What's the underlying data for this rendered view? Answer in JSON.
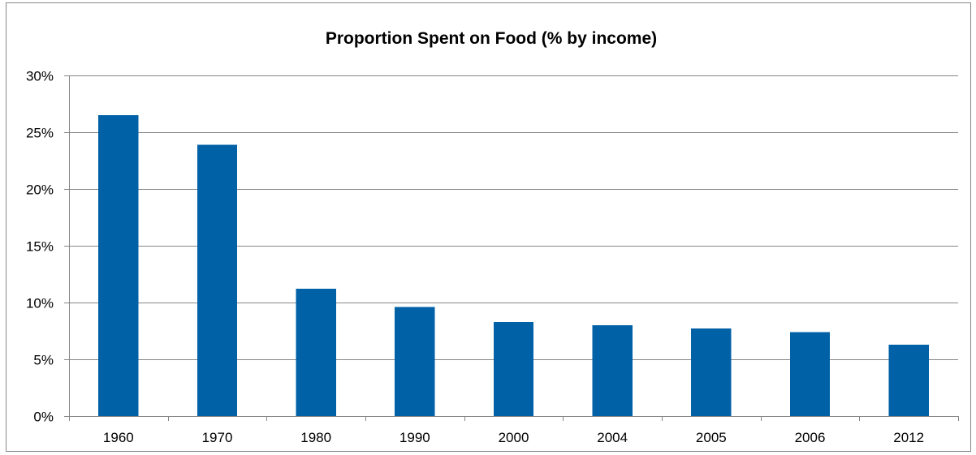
{
  "chart_data": {
    "type": "bar",
    "title": "Proportion Spent on Food (% by income)",
    "xlabel": "",
    "ylabel": "",
    "categories": [
      "1960",
      "1970",
      "1980",
      "1990",
      "2000",
      "2004",
      "2005",
      "2006",
      "2012"
    ],
    "values": [
      26.5,
      23.9,
      11.2,
      9.6,
      8.3,
      8.0,
      7.7,
      7.4,
      6.3
    ],
    "ylim": [
      0,
      30
    ],
    "yticks": [
      0,
      5,
      10,
      15,
      20,
      25,
      30
    ],
    "ytick_labels": [
      "0%",
      "5%",
      "10%",
      "15%",
      "20%",
      "25%",
      "30%"
    ],
    "grid": true,
    "legend": "none",
    "bar_color": "#0061A6"
  }
}
